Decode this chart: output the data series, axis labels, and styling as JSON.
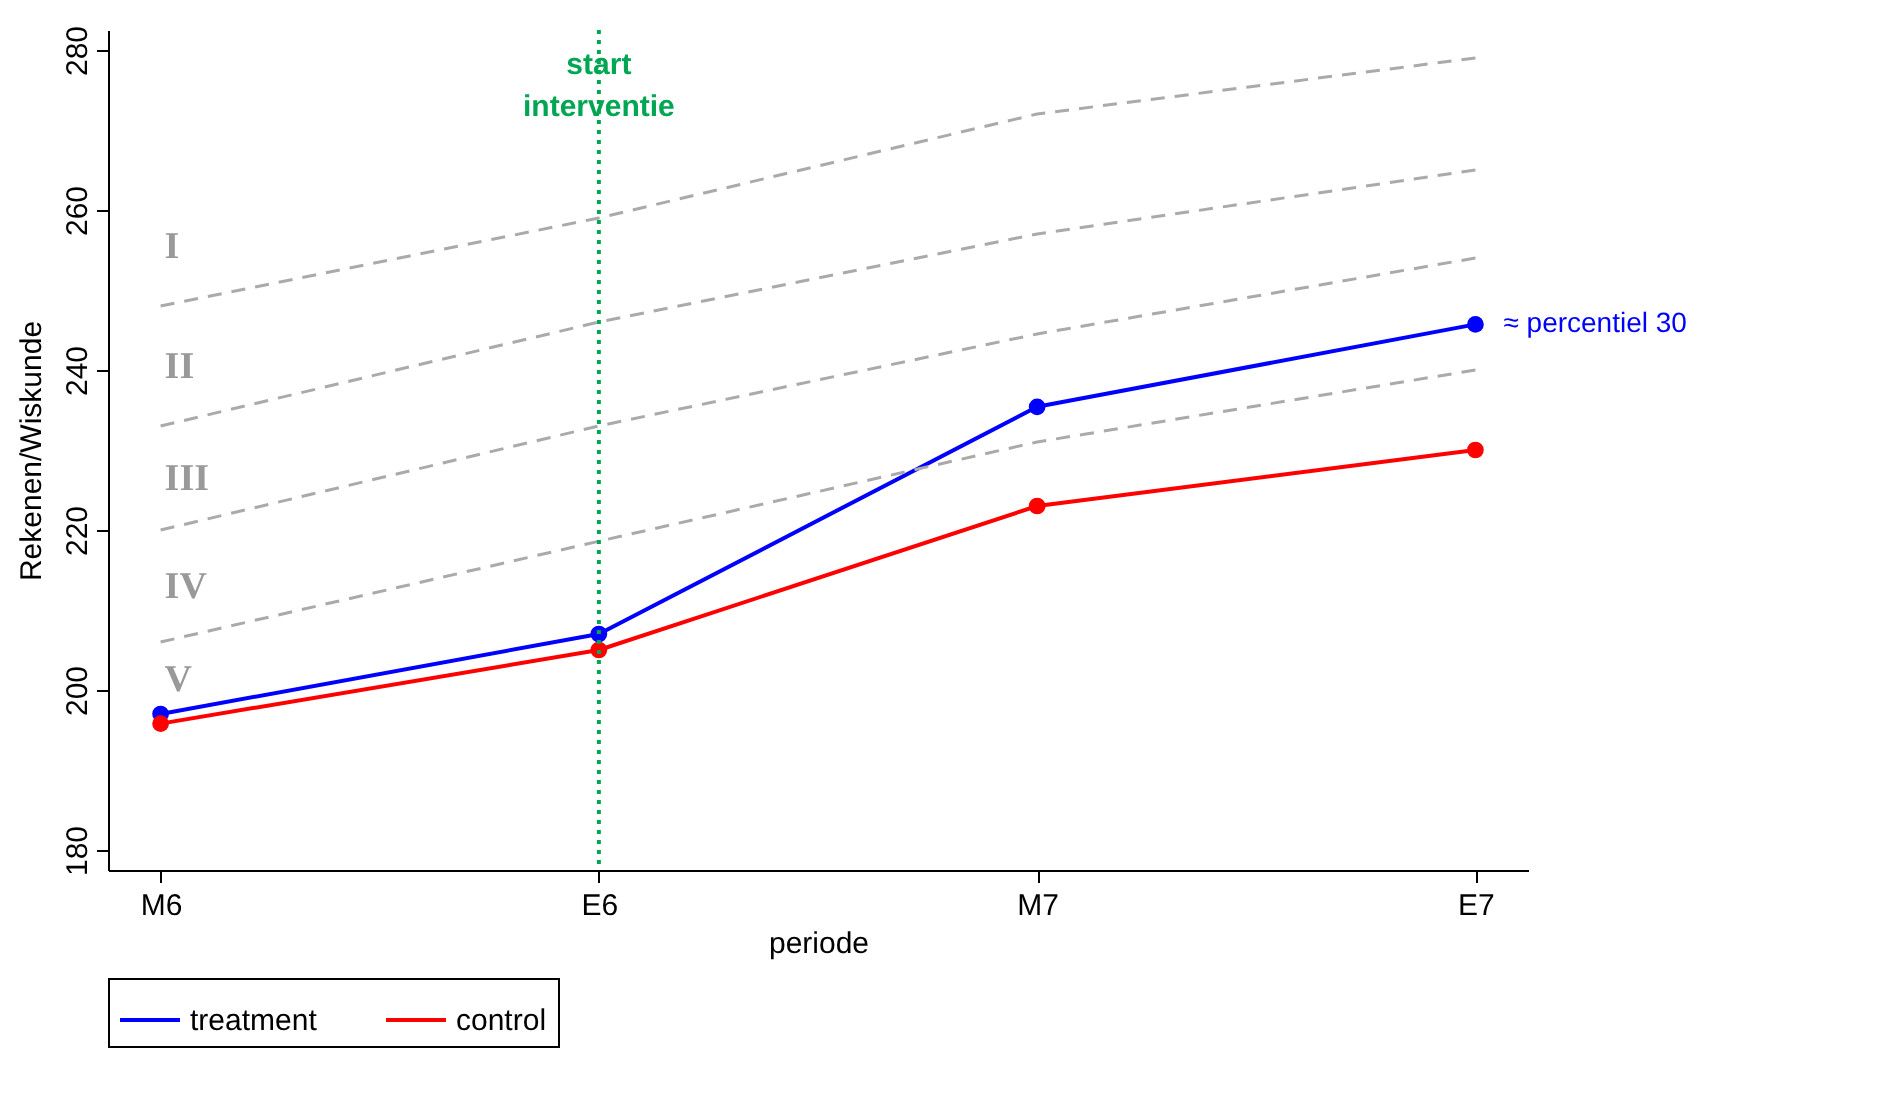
{
  "chart_data": {
    "type": "line",
    "xlabel": "periode",
    "ylabel": "Rekenen/Wiskunde",
    "categories": [
      "M6",
      "E6",
      "M7",
      "E7"
    ],
    "series": [
      {
        "name": "treatment",
        "color": "#0000ff",
        "values": [
          197,
          207,
          235.4,
          245.7
        ]
      },
      {
        "name": "control",
        "color": "#ff0000",
        "values": [
          195.8,
          205,
          223,
          230
        ]
      },
      {
        "color": "#aaaaaa",
        "line_style": "dashed",
        "marker": "none",
        "values": [
          248,
          259,
          272,
          279
        ]
      },
      {
        "color": "#aaaaaa",
        "line_style": "dashed",
        "marker": "none",
        "values": [
          233,
          246,
          257,
          265
        ]
      },
      {
        "color": "#aaaaaa",
        "line_style": "dashed",
        "marker": "none",
        "values": [
          220,
          233,
          244.5,
          254
        ]
      },
      {
        "color": "#aaaaaa",
        "line_style": "dashed",
        "marker": "none",
        "values": [
          206,
          218.6,
          231,
          240
        ]
      }
    ],
    "ylim": [
      177.5,
      282.5
    ],
    "yticks": [
      180,
      200,
      220,
      240,
      260,
      280
    ],
    "ref_lines": [
      {
        "axis": "x",
        "value": "E6",
        "label": "start interventie",
        "color": "#00a651",
        "line_style": "dotted"
      }
    ],
    "annotations": [
      "I",
      "II",
      "III",
      "IV",
      "V",
      {
        "text": "≈ percentiel 30",
        "x": "E7",
        "y": 245.7
      }
    ],
    "marker": "circle",
    "line_style": "solid",
    "legend": "bottom",
    "grid": false
  }
}
